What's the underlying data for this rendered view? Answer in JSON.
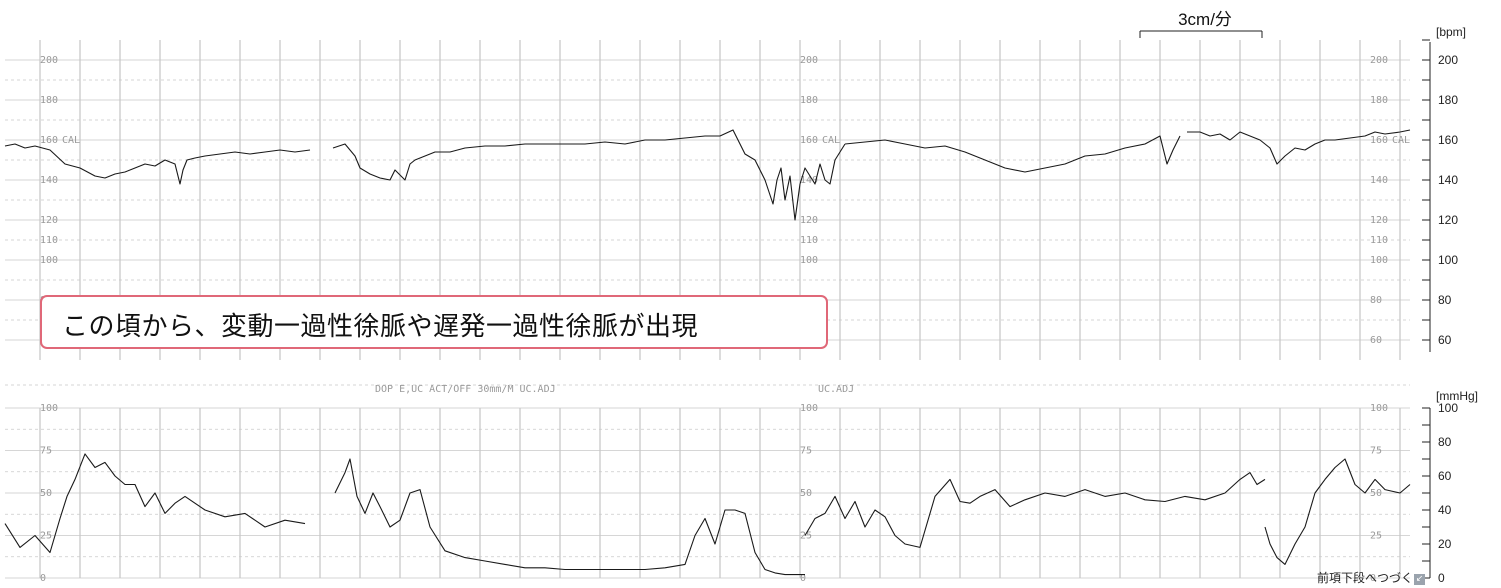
{
  "chart_data": [
    {
      "type": "line",
      "title": "",
      "ylabel": "",
      "unit": "[bpm]",
      "ylim": [
        50,
        210
      ],
      "yticks": [
        "200",
        "180",
        "160",
        "140",
        "120",
        "100",
        "80",
        "60"
      ],
      "paper_labels": [
        "200",
        "180",
        "160",
        "140",
        "120",
        "110",
        "100",
        "80",
        "60"
      ],
      "paper_cal_label": "CAL",
      "speed_label": "3cm/分",
      "series": [
        {
          "segment": 1,
          "x": [
            0,
            10,
            20,
            30,
            45,
            60,
            75,
            90,
            100,
            110,
            120,
            130,
            140,
            150,
            160,
            170,
            175,
            178,
            182,
            190,
            200,
            215,
            230,
            245,
            260,
            275,
            290,
            305
          ],
          "values": [
            157,
            158,
            156,
            157,
            155,
            148,
            146,
            142,
            141,
            143,
            144,
            146,
            148,
            147,
            150,
            148,
            138,
            145,
            150,
            151,
            152,
            153,
            154,
            153,
            154,
            155,
            154,
            155
          ]
        },
        {
          "segment": 2,
          "x": [
            328,
            340,
            350,
            355,
            365,
            375,
            385,
            390,
            400,
            405,
            410,
            420,
            430,
            445,
            460,
            480,
            500,
            520,
            540,
            560,
            580,
            600,
            620,
            640,
            660,
            680,
            700,
            715,
            728,
            735,
            740,
            750,
            760,
            768,
            772,
            776,
            780,
            785,
            790,
            795,
            800,
            810,
            815,
            820,
            825,
            830,
            840
          ],
          "values": [
            156,
            158,
            152,
            146,
            143,
            141,
            140,
            145,
            140,
            148,
            150,
            152,
            154,
            154,
            156,
            157,
            157,
            158,
            158,
            158,
            158,
            159,
            158,
            160,
            160,
            161,
            162,
            162,
            165,
            158,
            153,
            150,
            140,
            128,
            140,
            146,
            130,
            142,
            120,
            138,
            146,
            138,
            148,
            140,
            138,
            150,
            158
          ]
        },
        {
          "segment": 3,
          "x": [
            840,
            860,
            880,
            900,
            920,
            940,
            960,
            980,
            1000,
            1020,
            1040,
            1060,
            1080,
            1100,
            1120,
            1140,
            1155,
            1162,
            1168,
            1175
          ],
          "values": [
            158,
            159,
            160,
            158,
            156,
            157,
            154,
            150,
            146,
            144,
            146,
            148,
            152,
            153,
            156,
            158,
            162,
            148,
            155,
            162
          ]
        },
        {
          "segment": 4,
          "x": [
            1182,
            1195,
            1205,
            1215,
            1225,
            1235,
            1245,
            1255,
            1265,
            1272,
            1280,
            1290,
            1300,
            1310,
            1320,
            1330,
            1345,
            1360,
            1370,
            1380,
            1395,
            1405
          ],
          "values": [
            164,
            164,
            162,
            163,
            160,
            164,
            162,
            160,
            156,
            148,
            152,
            156,
            155,
            158,
            160,
            160,
            161,
            162,
            164,
            163,
            164,
            165
          ]
        }
      ]
    },
    {
      "type": "line",
      "title": "",
      "ylabel": "",
      "unit": "[mmHg]",
      "ylim": [
        0,
        100
      ],
      "yticks": [
        "100",
        "80",
        "60",
        "40",
        "20",
        "0"
      ],
      "paper_labels": [
        "100",
        "75",
        "50",
        "25",
        "0"
      ],
      "series": [
        {
          "segment": 1,
          "x": [
            0,
            15,
            30,
            45,
            55,
            62,
            70,
            80,
            90,
            100,
            110,
            120,
            130,
            140,
            150,
            160,
            170,
            180,
            200,
            220,
            240,
            260,
            280,
            300
          ],
          "values": [
            32,
            18,
            25,
            15,
            35,
            48,
            58,
            73,
            65,
            68,
            60,
            55,
            55,
            42,
            50,
            38,
            44,
            48,
            40,
            36,
            38,
            30,
            34,
            32
          ]
        },
        {
          "segment": 2,
          "x": [
            330,
            340,
            345,
            352,
            360,
            368,
            375,
            385,
            395,
            405,
            415,
            425,
            440,
            460,
            480,
            500,
            520,
            540,
            560,
            580,
            600,
            620,
            640,
            660,
            680,
            690,
            700,
            710,
            720,
            730,
            740,
            750,
            760,
            770,
            780,
            790,
            800
          ],
          "values": [
            50,
            62,
            70,
            48,
            38,
            50,
            42,
            30,
            34,
            50,
            52,
            30,
            16,
            12,
            10,
            8,
            6,
            6,
            5,
            5,
            5,
            5,
            5,
            6,
            8,
            25,
            35,
            20,
            40,
            40,
            38,
            15,
            5,
            3,
            2,
            2,
            2
          ]
        },
        {
          "segment": 3,
          "x": [
            800,
            810,
            820,
            830,
            840,
            850,
            860,
            870,
            880,
            890,
            900,
            915,
            930,
            945,
            955,
            965,
            975,
            990,
            1005,
            1020,
            1040,
            1060,
            1080,
            1100,
            1120,
            1140,
            1160,
            1180,
            1200,
            1220,
            1235,
            1245,
            1252,
            1260
          ],
          "values": [
            25,
            35,
            38,
            48,
            35,
            45,
            30,
            40,
            36,
            25,
            20,
            18,
            48,
            58,
            45,
            44,
            48,
            52,
            42,
            46,
            50,
            48,
            52,
            48,
            50,
            46,
            45,
            48,
            46,
            50,
            58,
            62,
            55,
            58
          ]
        },
        {
          "segment": 4,
          "x": [
            1260,
            1265,
            1272,
            1280,
            1290,
            1300,
            1310,
            1320,
            1330,
            1340,
            1350,
            1360,
            1370,
            1380,
            1395,
            1405
          ],
          "values": [
            30,
            20,
            12,
            8,
            20,
            30,
            50,
            58,
            65,
            70,
            55,
            50,
            58,
            52,
            50,
            55
          ]
        }
      ]
    }
  ],
  "paper": {
    "mode_line": "DOP E,UC ACT/OFF 30mm/M UC.ADJ",
    "mode_line_2": "UC.ADJ"
  },
  "annotation": {
    "text": "この頃から、変動一過性徐脈や遅発一過性徐脈が出現",
    "border_color": "#e06878"
  },
  "footer": {
    "text": "前項下段へつづく",
    "icon": "arrow-corner-icon"
  }
}
